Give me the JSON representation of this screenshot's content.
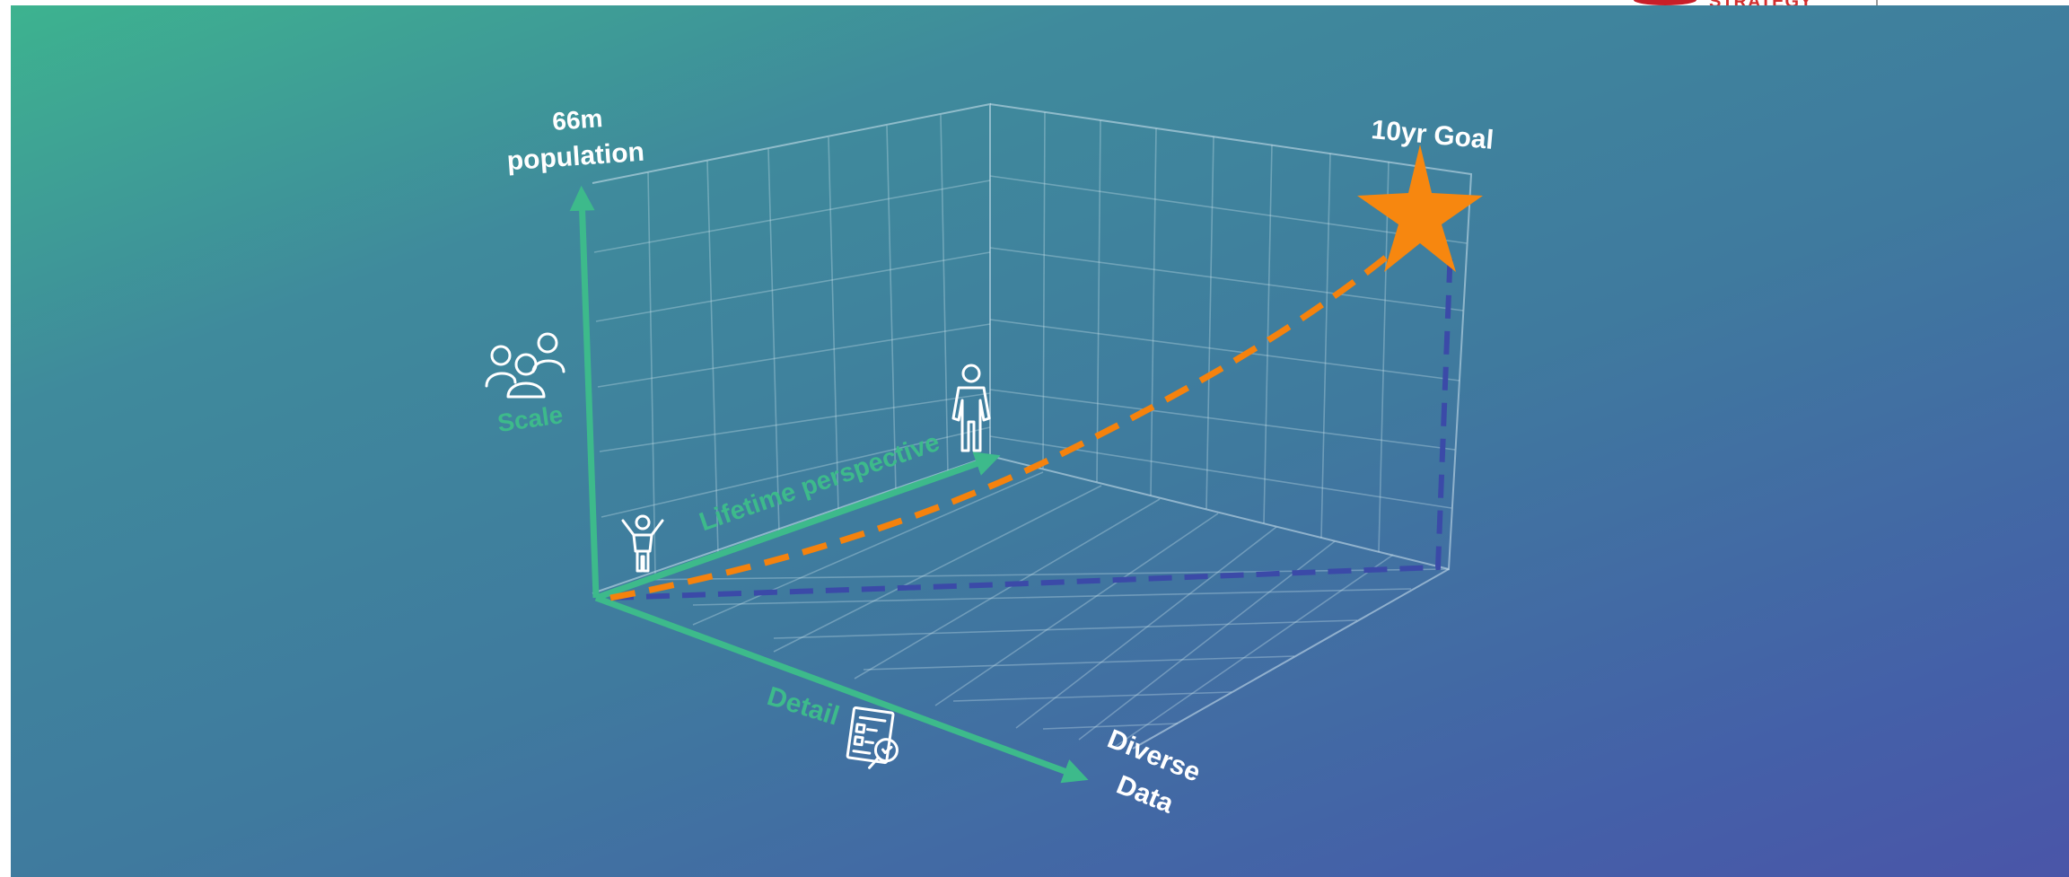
{
  "labels": {
    "y_axis_value": "66m",
    "y_axis_value_line2": "population",
    "goal": "10yr Goal",
    "scale": "Scale",
    "lifetime": "Lifetime perspective",
    "detail": "Detail",
    "diverse_line1": "Diverse",
    "diverse_line2": "Data"
  },
  "colors": {
    "axis_green": "#3dba8b",
    "goal_path_orange": "#f5820d",
    "baseline_path_blue": "#3b4aa8",
    "star": "#f7870f",
    "text_white": "#ffffff"
  },
  "icons": {
    "people_group": "people-group-icon",
    "adult": "adult-person-icon",
    "child": "child-person-icon",
    "report": "report-magnifier-icon",
    "goal": "star-icon"
  },
  "corner_brand": {
    "name": "STRATEGY"
  }
}
